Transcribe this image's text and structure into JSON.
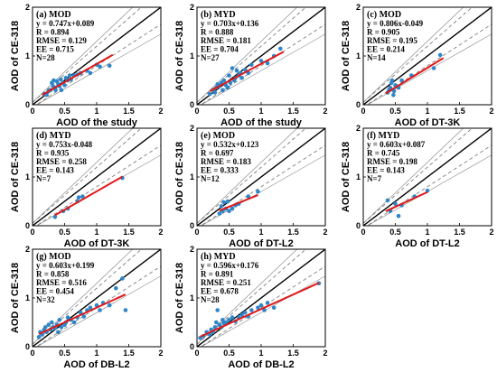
{
  "chart_data": [
    {
      "type": "scatter",
      "title": "(a) MOD",
      "stats": [
        "y = 0.747x+0.089",
        "R = 0.894",
        "RMSE = 0.129",
        "EE = 0.715",
        "N=28"
      ],
      "xlabel": "AOD of the study",
      "ylabel": "AOD of CE-318",
      "xlim": [
        0,
        2
      ],
      "ylim": [
        0,
        2
      ],
      "xticks": [
        "0",
        "0.5",
        "1",
        "1.5",
        "2"
      ],
      "yticks": [
        "0",
        "1",
        "2"
      ],
      "fit": {
        "slope": 0.747,
        "intercept": 0.089,
        "x_range": [
          0.15,
          1.25
        ]
      },
      "points": [
        [
          0.18,
          0.22
        ],
        [
          0.22,
          0.2
        ],
        [
          0.25,
          0.28
        ],
        [
          0.28,
          0.3
        ],
        [
          0.3,
          0.45
        ],
        [
          0.32,
          0.38
        ],
        [
          0.33,
          0.5
        ],
        [
          0.35,
          0.35
        ],
        [
          0.36,
          0.3
        ],
        [
          0.38,
          0.48
        ],
        [
          0.4,
          0.42
        ],
        [
          0.42,
          0.38
        ],
        [
          0.44,
          0.52
        ],
        [
          0.45,
          0.3
        ],
        [
          0.47,
          0.45
        ],
        [
          0.5,
          0.4
        ],
        [
          0.52,
          0.55
        ],
        [
          0.55,
          0.5
        ],
        [
          0.58,
          0.6
        ],
        [
          0.6,
          0.52
        ],
        [
          0.65,
          0.6
        ],
        [
          0.7,
          0.62
        ],
        [
          0.75,
          0.65
        ],
        [
          0.85,
          0.7
        ],
        [
          0.9,
          0.65
        ],
        [
          1.0,
          0.82
        ],
        [
          1.05,
          0.78
        ],
        [
          1.2,
          0.8
        ]
      ]
    },
    {
      "type": "scatter",
      "title": "(b) MYD",
      "stats": [
        "y = 0.703x+0.136",
        "R = 0.888",
        "RMSE = 0.181",
        "EE = 0.704",
        "N=27"
      ],
      "xlabel": "AOD of the study",
      "ylabel": "AOD of CE-318",
      "xlim": [
        0,
        2
      ],
      "ylim": [
        0,
        2
      ],
      "xticks": [
        "0",
        "0.5",
        "1",
        "1.5",
        "2"
      ],
      "yticks": [
        "0",
        "1",
        "2"
      ],
      "fit": {
        "slope": 0.703,
        "intercept": 0.136,
        "x_range": [
          0.2,
          1.35
        ]
      },
      "points": [
        [
          0.2,
          0.22
        ],
        [
          0.25,
          0.3
        ],
        [
          0.28,
          0.25
        ],
        [
          0.3,
          0.35
        ],
        [
          0.32,
          0.42
        ],
        [
          0.35,
          0.38
        ],
        [
          0.38,
          0.45
        ],
        [
          0.4,
          0.3
        ],
        [
          0.42,
          0.5
        ],
        [
          0.45,
          0.4
        ],
        [
          0.48,
          0.35
        ],
        [
          0.5,
          0.6
        ],
        [
          0.52,
          0.45
        ],
        [
          0.55,
          0.75
        ],
        [
          0.58,
          0.5
        ],
        [
          0.6,
          0.55
        ],
        [
          0.62,
          0.7
        ],
        [
          0.65,
          0.6
        ],
        [
          0.68,
          0.65
        ],
        [
          0.7,
          0.55
        ],
        [
          0.75,
          0.72
        ],
        [
          0.8,
          0.65
        ],
        [
          0.85,
          0.82
        ],
        [
          1.0,
          0.9
        ],
        [
          1.1,
          0.85
        ],
        [
          1.2,
          1.0
        ],
        [
          1.3,
          1.15
        ]
      ]
    },
    {
      "type": "scatter",
      "title": "(c) MOD",
      "stats": [
        "y = 0.806x-0.049",
        "R = 0.905",
        "RMSE = 0.195",
        "EE = 0.214",
        "N=14"
      ],
      "xlabel": "AOD of DT-3K",
      "ylabel": "AOD of CE-318",
      "xlim": [
        0,
        2
      ],
      "ylim": [
        0,
        2
      ],
      "xticks": [
        "0",
        "0.5",
        "1",
        "1.5",
        "2"
      ],
      "yticks": [
        "0",
        "1",
        "2"
      ],
      "fit": {
        "slope": 0.806,
        "intercept": -0.049,
        "x_range": [
          0.35,
          1.25
        ]
      },
      "points": [
        [
          0.38,
          0.25
        ],
        [
          0.4,
          0.3
        ],
        [
          0.42,
          0.35
        ],
        [
          0.44,
          0.45
        ],
        [
          0.45,
          0.5
        ],
        [
          0.47,
          0.2
        ],
        [
          0.48,
          0.28
        ],
        [
          0.5,
          0.4
        ],
        [
          0.52,
          0.38
        ],
        [
          0.55,
          0.35
        ],
        [
          0.6,
          0.5
        ],
        [
          0.75,
          0.6
        ],
        [
          1.1,
          0.75
        ],
        [
          1.2,
          1.02
        ]
      ]
    },
    {
      "type": "scatter",
      "title": "(d) MYD",
      "stats": [
        "y = 0.753x-0.048",
        "R = 0.935",
        "RMSE = 0.258",
        "EE = 0.143",
        "N=7"
      ],
      "xlabel": "AOD of DT-3K",
      "ylabel": "AOD of CE-318",
      "xlim": [
        0,
        2
      ],
      "ylim": [
        0,
        2
      ],
      "xticks": [
        "0",
        "0.5",
        "1",
        "1.5",
        "2"
      ],
      "yticks": [
        "0",
        "1"
      ],
      "fit": {
        "slope": 0.753,
        "intercept": -0.048,
        "x_range": [
          0.35,
          1.4
        ]
      },
      "points": [
        [
          0.35,
          0.18
        ],
        [
          0.48,
          0.3
        ],
        [
          0.55,
          0.35
        ],
        [
          0.7,
          0.5
        ],
        [
          0.72,
          0.58
        ],
        [
          0.78,
          0.6
        ],
        [
          1.4,
          0.98
        ]
      ]
    },
    {
      "type": "scatter",
      "title": "(e) MOD",
      "stats": [
        "y = 0.532x+0.123",
        "R = 0.697",
        "RMSE = 0.183",
        "EE = 0.333",
        "N=12"
      ],
      "xlabel": "AOD of DT-L2",
      "ylabel": "AOD of CE-318",
      "xlim": [
        0,
        2
      ],
      "ylim": [
        0,
        2
      ],
      "xticks": [
        "0",
        "0.5",
        "1",
        "1.5",
        "2"
      ],
      "yticks": [
        "0",
        "1",
        "2"
      ],
      "fit": {
        "slope": 0.532,
        "intercept": 0.123,
        "x_range": [
          0.35,
          0.95
        ]
      },
      "points": [
        [
          0.35,
          0.25
        ],
        [
          0.38,
          0.4
        ],
        [
          0.4,
          0.3
        ],
        [
          0.42,
          0.48
        ],
        [
          0.45,
          0.35
        ],
        [
          0.48,
          0.5
        ],
        [
          0.5,
          0.3
        ],
        [
          0.55,
          0.35
        ],
        [
          0.6,
          0.42
        ],
        [
          0.65,
          0.45
        ],
        [
          0.8,
          0.6
        ],
        [
          0.95,
          0.7
        ]
      ]
    },
    {
      "type": "scatter",
      "title": "(f) MYD",
      "stats": [
        "y = 0.603x+0.087",
        "R = 0.745",
        "RMSE = 0.198",
        "EE = 0.143",
        "N=7"
      ],
      "xlabel": "AOD of DT-L2",
      "ylabel": "AOD of CE-318",
      "xlim": [
        0,
        2
      ],
      "ylim": [
        0,
        2
      ],
      "xticks": [
        "0",
        "0.5",
        "1",
        "1.5",
        "2"
      ],
      "yticks": [
        "0",
        "1",
        "2"
      ],
      "fit": {
        "slope": 0.603,
        "intercept": 0.087,
        "x_range": [
          0.35,
          1.0
        ]
      },
      "points": [
        [
          0.38,
          0.52
        ],
        [
          0.42,
          0.3
        ],
        [
          0.5,
          0.45
        ],
        [
          0.55,
          0.2
        ],
        [
          0.6,
          0.42
        ],
        [
          0.8,
          0.6
        ],
        [
          1.0,
          0.72
        ]
      ]
    },
    {
      "type": "scatter",
      "title": "(g) MOD",
      "stats": [
        "y = 0.603x+0.199",
        "R = 0.858",
        "RMSE = 0.516",
        "EE = 0.454",
        "N=32"
      ],
      "xlabel": "AOD of DB-L2",
      "ylabel": "AOD of CE-318",
      "xlim": [
        0,
        2
      ],
      "ylim": [
        0,
        2
      ],
      "xticks": [
        "0",
        "0.5",
        "1",
        "1.5",
        "2"
      ],
      "yticks": [
        "0",
        "1",
        "2"
      ],
      "fit": {
        "slope": 0.603,
        "intercept": 0.199,
        "x_range": [
          0.1,
          1.45
        ]
      },
      "points": [
        [
          0.1,
          0.2
        ],
        [
          0.12,
          0.3
        ],
        [
          0.15,
          0.25
        ],
        [
          0.18,
          0.35
        ],
        [
          0.2,
          0.4
        ],
        [
          0.22,
          0.3
        ],
        [
          0.25,
          0.45
        ],
        [
          0.28,
          0.35
        ],
        [
          0.3,
          0.5
        ],
        [
          0.32,
          0.4
        ],
        [
          0.35,
          0.38
        ],
        [
          0.38,
          0.45
        ],
        [
          0.4,
          0.3
        ],
        [
          0.42,
          0.55
        ],
        [
          0.45,
          0.4
        ],
        [
          0.5,
          0.45
        ],
        [
          0.52,
          0.5
        ],
        [
          0.55,
          0.6
        ],
        [
          0.6,
          0.55
        ],
        [
          0.65,
          0.5
        ],
        [
          0.7,
          0.6
        ],
        [
          0.75,
          0.7
        ],
        [
          0.8,
          0.62
        ],
        [
          0.85,
          0.75
        ],
        [
          0.9,
          0.8
        ],
        [
          1.0,
          0.85
        ],
        [
          1.05,
          0.75
        ],
        [
          1.1,
          0.9
        ],
        [
          1.2,
          0.85
        ],
        [
          1.3,
          1.2
        ],
        [
          1.4,
          1.4
        ],
        [
          1.45,
          0.75
        ]
      ]
    },
    {
      "type": "scatter",
      "title": "(h) MYD",
      "stats": [
        "y = 0.596x+0.176",
        "R = 0.891",
        "RMSE = 0.251",
        "EE = 0.678",
        "N=28"
      ],
      "xlabel": "AOD of DB-L2",
      "ylabel": "AOD of CE-318",
      "xlim": [
        0,
        2
      ],
      "ylim": [
        0,
        2
      ],
      "xticks": [
        "0",
        "0.5",
        "1",
        "1.5",
        "2"
      ],
      "yticks": [
        "0",
        "1",
        "2"
      ],
      "fit": {
        "slope": 0.596,
        "intercept": 0.176,
        "x_range": [
          0.05,
          1.9
        ]
      },
      "points": [
        [
          0.05,
          0.18
        ],
        [
          0.1,
          0.22
        ],
        [
          0.15,
          0.3
        ],
        [
          0.2,
          0.25
        ],
        [
          0.22,
          0.35
        ],
        [
          0.25,
          0.3
        ],
        [
          0.28,
          0.4
        ],
        [
          0.3,
          0.5
        ],
        [
          0.32,
          0.75
        ],
        [
          0.35,
          0.45
        ],
        [
          0.38,
          0.4
        ],
        [
          0.4,
          0.55
        ],
        [
          0.42,
          0.48
        ],
        [
          0.45,
          0.5
        ],
        [
          0.5,
          0.55
        ],
        [
          0.55,
          0.6
        ],
        [
          0.6,
          0.52
        ],
        [
          0.65,
          0.6
        ],
        [
          0.7,
          0.65
        ],
        [
          0.75,
          0.7
        ],
        [
          0.8,
          0.62
        ],
        [
          0.85,
          0.75
        ],
        [
          0.95,
          0.8
        ],
        [
          1.0,
          0.85
        ],
        [
          1.05,
          0.75
        ],
        [
          1.1,
          0.9
        ],
        [
          1.2,
          0.8
        ],
        [
          1.9,
          1.3
        ]
      ]
    }
  ],
  "colors": {
    "points": "#2e86c9",
    "fit_line": "#e01818",
    "one_to_one": "#000000",
    "ee_envelope": "#808080",
    "frame": "#000000"
  }
}
